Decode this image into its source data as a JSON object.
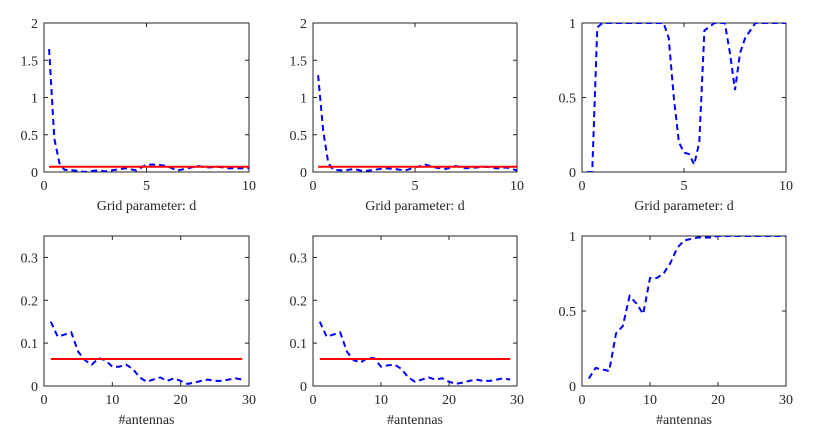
{
  "chart_data": [
    {
      "type": "line",
      "xlabel": "Grid parameter: d",
      "ylabel": "",
      "xlim": [
        0,
        10
      ],
      "ylim": [
        0,
        2
      ],
      "xticks": [
        0,
        5,
        10
      ],
      "yticks": [
        0,
        0.5,
        1,
        1.5,
        2
      ],
      "series": [
        {
          "style": "dashed",
          "color": "#0000ff",
          "x": [
            0.25,
            0.5,
            0.75,
            1.0,
            1.5,
            2.0,
            2.5,
            3.0,
            3.5,
            4.0,
            4.5,
            5.0,
            5.5,
            6.0,
            6.5,
            7.0,
            7.5,
            8.0,
            8.5,
            9.0,
            9.5,
            10.0
          ],
          "y": [
            1.65,
            0.45,
            0.12,
            0.03,
            0.02,
            0.0,
            0.02,
            0.01,
            0.03,
            0.05,
            0.02,
            0.1,
            0.1,
            0.08,
            0.02,
            0.05,
            0.08,
            0.06,
            0.07,
            0.05,
            0.05,
            0.05
          ]
        },
        {
          "style": "solid",
          "color": "#ff0000",
          "x": [
            0.25,
            10.0
          ],
          "y": [
            0.07,
            0.07
          ]
        }
      ]
    },
    {
      "type": "line",
      "xlabel": "Grid parameter: d",
      "ylabel": "",
      "xlim": [
        0,
        10
      ],
      "ylim": [
        0,
        2
      ],
      "xticks": [
        0,
        5,
        10
      ],
      "yticks": [
        0,
        0.5,
        1,
        1.5,
        2
      ],
      "series": [
        {
          "style": "dashed",
          "color": "#0000ff",
          "x": [
            0.25,
            0.5,
            0.75,
            1.0,
            1.5,
            2.0,
            2.5,
            3.0,
            3.5,
            4.0,
            4.5,
            5.0,
            5.5,
            6.0,
            6.5,
            7.0,
            7.5,
            8.0,
            8.5,
            9.0,
            9.5,
            10.0
          ],
          "y": [
            1.3,
            0.55,
            0.12,
            0.03,
            0.02,
            0.04,
            0.01,
            0.03,
            0.05,
            0.04,
            0.02,
            0.06,
            0.1,
            0.06,
            0.04,
            0.08,
            0.05,
            0.06,
            0.07,
            0.05,
            0.06,
            0.02
          ]
        },
        {
          "style": "solid",
          "color": "#ff0000",
          "x": [
            0.25,
            10.0
          ],
          "y": [
            0.07,
            0.07
          ]
        }
      ]
    },
    {
      "type": "line",
      "xlabel": "Grid parameter: d",
      "ylabel": "",
      "xlim": [
        0,
        10
      ],
      "ylim": [
        0,
        1
      ],
      "xticks": [
        0,
        5,
        10
      ],
      "yticks": [
        0,
        0.5,
        1
      ],
      "series": [
        {
          "style": "dashed",
          "color": "#0000ff",
          "x": [
            0.25,
            0.5,
            0.75,
            1.0,
            1.5,
            2.0,
            2.5,
            3.0,
            3.5,
            4.0,
            4.25,
            4.5,
            4.75,
            5.0,
            5.25,
            5.5,
            5.75,
            6.0,
            6.5,
            7.0,
            7.25,
            7.5,
            7.75,
            8.0,
            8.5,
            9.0,
            9.5,
            10.0
          ],
          "y": [
            0.0,
            0.0,
            0.97,
            1.0,
            1.0,
            1.0,
            1.0,
            1.0,
            1.0,
            1.0,
            0.9,
            0.5,
            0.2,
            0.13,
            0.12,
            0.05,
            0.2,
            0.95,
            1.0,
            1.0,
            0.8,
            0.55,
            0.8,
            0.9,
            1.0,
            1.0,
            1.0,
            1.0
          ]
        }
      ]
    },
    {
      "type": "line",
      "xlabel": "#antennas",
      "ylabel": "",
      "xlim": [
        0,
        30
      ],
      "ylim": [
        0,
        0.35
      ],
      "xticks": [
        0,
        10,
        20,
        30
      ],
      "yticks": [
        0,
        0.1,
        0.2,
        0.3
      ],
      "series": [
        {
          "style": "dashed",
          "color": "#0000ff",
          "x": [
            1,
            2,
            3,
            4,
            5,
            6,
            7,
            8,
            9,
            10,
            11,
            12,
            13,
            14,
            15,
            16,
            17,
            18,
            19,
            20,
            21,
            22,
            23,
            24,
            25,
            26,
            27,
            28,
            29
          ],
          "y": [
            0.15,
            0.115,
            0.12,
            0.125,
            0.08,
            0.06,
            0.05,
            0.065,
            0.06,
            0.045,
            0.045,
            0.05,
            0.04,
            0.02,
            0.01,
            0.015,
            0.02,
            0.012,
            0.018,
            0.012,
            0.005,
            0.008,
            0.012,
            0.015,
            0.012,
            0.012,
            0.015,
            0.018,
            0.015
          ]
        },
        {
          "style": "solid",
          "color": "#ff0000",
          "x": [
            1,
            29
          ],
          "y": [
            0.063,
            0.063
          ]
        }
      ]
    },
    {
      "type": "line",
      "xlabel": "#antennas",
      "ylabel": "",
      "xlim": [
        0,
        30
      ],
      "ylim": [
        0,
        0.35
      ],
      "xticks": [
        0,
        10,
        20,
        30
      ],
      "yticks": [
        0,
        0.1,
        0.2,
        0.3
      ],
      "series": [
        {
          "style": "dashed",
          "color": "#0000ff",
          "x": [
            1,
            2,
            3,
            4,
            5,
            6,
            7,
            8,
            9,
            10,
            11,
            12,
            13,
            14,
            15,
            16,
            17,
            18,
            19,
            20,
            21,
            22,
            23,
            24,
            25,
            26,
            27,
            28,
            29
          ],
          "y": [
            0.15,
            0.115,
            0.12,
            0.125,
            0.08,
            0.06,
            0.055,
            0.065,
            0.065,
            0.045,
            0.048,
            0.05,
            0.04,
            0.02,
            0.01,
            0.015,
            0.02,
            0.015,
            0.018,
            0.01,
            0.005,
            0.008,
            0.012,
            0.015,
            0.012,
            0.012,
            0.015,
            0.018,
            0.015
          ]
        },
        {
          "style": "solid",
          "color": "#ff0000",
          "x": [
            1,
            29
          ],
          "y": [
            0.063,
            0.063
          ]
        }
      ]
    },
    {
      "type": "line",
      "xlabel": "#antennas",
      "ylabel": "",
      "xlim": [
        0,
        30
      ],
      "ylim": [
        0,
        1
      ],
      "xticks": [
        0,
        10,
        20,
        30
      ],
      "yticks": [
        0,
        0.5,
        1
      ],
      "series": [
        {
          "style": "dashed",
          "color": "#0000ff",
          "x": [
            1,
            2,
            3,
            4,
            5,
            6,
            7,
            8,
            9,
            10,
            11,
            12,
            13,
            14,
            15,
            16,
            17,
            18,
            19,
            20,
            21,
            22,
            23,
            24,
            25,
            26,
            27,
            28,
            29,
            30
          ],
          "y": [
            0.05,
            0.12,
            0.11,
            0.1,
            0.35,
            0.4,
            0.6,
            0.55,
            0.48,
            0.72,
            0.72,
            0.75,
            0.82,
            0.92,
            0.97,
            0.98,
            0.99,
            0.99,
            0.99,
            1.0,
            1.0,
            1.0,
            1.0,
            1.0,
            1.0,
            1.0,
            1.0,
            1.0,
            1.0,
            1.0
          ]
        }
      ]
    }
  ]
}
